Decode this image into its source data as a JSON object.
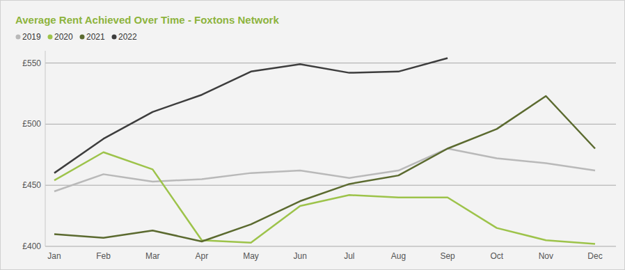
{
  "chart_data": {
    "type": "line",
    "title": "Average Rent Achieved Over Time - Foxtons Network",
    "categories": [
      "Jan",
      "Feb",
      "Mar",
      "Apr",
      "May",
      "Jun",
      "Jul",
      "Aug",
      "Sep",
      "Oct",
      "Nov",
      "Dec"
    ],
    "series": [
      {
        "name": "2019",
        "color": "#b9b9b9",
        "values": [
          445,
          459,
          453,
          455,
          460,
          462,
          456,
          462,
          480,
          472,
          468,
          462
        ]
      },
      {
        "name": "2020",
        "color": "#9dc34a",
        "values": [
          454,
          477,
          463,
          405,
          403,
          433,
          442,
          440,
          440,
          415,
          405,
          402
        ]
      },
      {
        "name": "2021",
        "color": "#5b6a2f",
        "values": [
          410,
          407,
          413,
          404,
          418,
          437,
          451,
          458,
          480,
          496,
          523,
          480
        ]
      },
      {
        "name": "2022",
        "color": "#3d3d3d",
        "values": [
          460,
          488,
          510,
          524,
          543,
          549,
          542,
          543,
          554,
          null,
          null,
          null
        ]
      }
    ],
    "ylim": [
      400,
      560
    ],
    "yticks": [
      {
        "value": 400,
        "label": "£400"
      },
      {
        "value": 450,
        "label": "£450"
      },
      {
        "value": 500,
        "label": "£500"
      },
      {
        "value": 550,
        "label": "£550"
      }
    ],
    "grid": true,
    "legend": "top-left"
  }
}
